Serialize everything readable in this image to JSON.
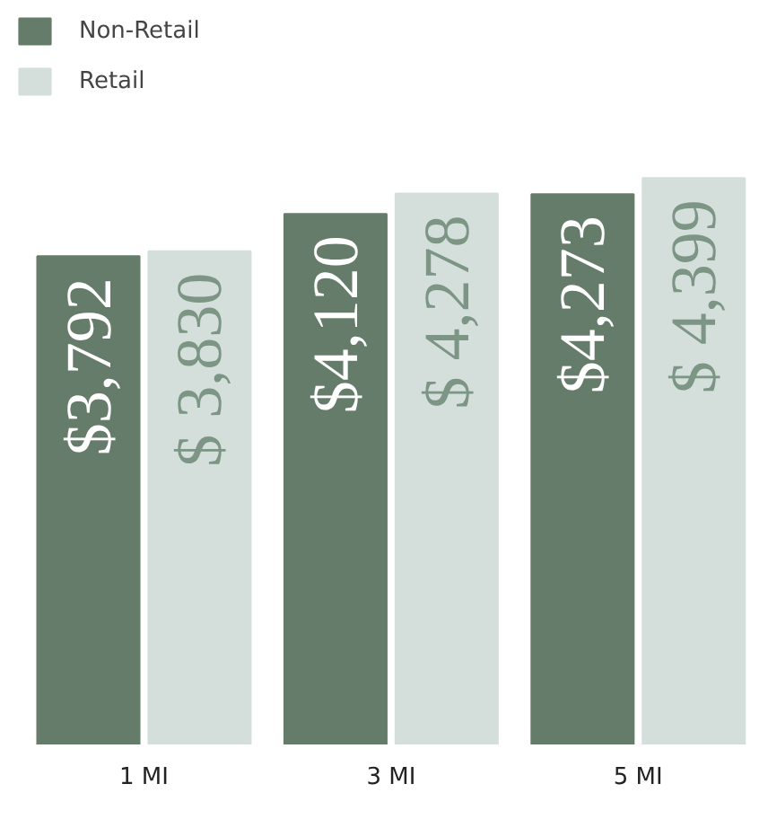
{
  "chart_data": {
    "type": "bar",
    "categories": [
      "1 MI",
      "3 MI",
      "5 MI"
    ],
    "legend": "top left",
    "grid": false,
    "tick_labels": "x",
    "series": [
      {
        "name": "Non-Retail",
        "color": "#647c69",
        "values": [
          3792,
          4120,
          4273
        ],
        "value_labels": [
          "$3,792",
          "$4,120",
          "$4,273"
        ]
      },
      {
        "name": "Retail",
        "color": "#d4dfdc",
        "values": [
          3830,
          4278,
          4399
        ],
        "value_labels": [
          "$ 3,830",
          "$ 4,278",
          "$ 4,399"
        ]
      }
    ]
  }
}
